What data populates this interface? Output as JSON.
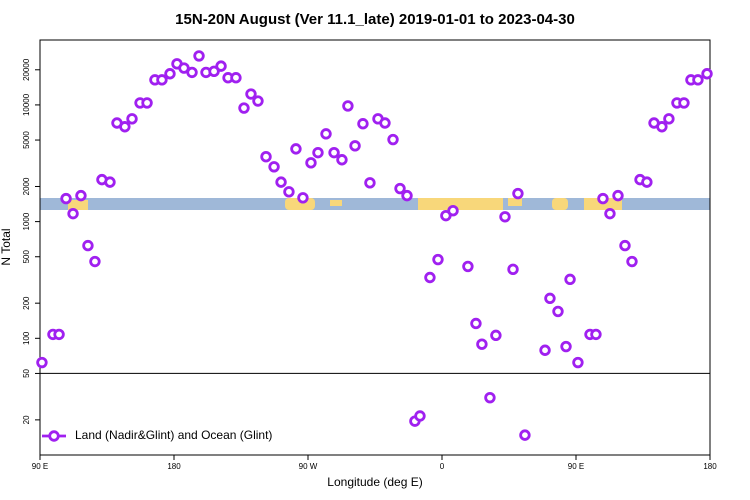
{
  "chart_data": {
    "type": "scatter",
    "title": "15N-20N August (Ver 11.1_late)   2019-01-01 to 2023-04-30",
    "xlabel": "Longitude (deg E)",
    "ylabel": "N Total",
    "xlim": [
      90,
      540
    ],
    "xticks": [
      {
        "value": 90,
        "label": "90 E"
      },
      180,
      {
        "value": 270,
        "label": "90 W"
      },
      {
        "value": 360,
        "label": "0"
      },
      {
        "value": 450,
        "label": "90 E"
      },
      {
        "value": 540,
        "label": "180"
      }
    ],
    "ylim": [
      10,
      36000
    ],
    "yscale": "log",
    "yticks": [
      20,
      50,
      100,
      200,
      500,
      1000,
      2000,
      5000,
      10000,
      20000
    ],
    "reference_line": 50,
    "legend": "bottom-left",
    "series": [
      {
        "name": "Land (Nadir&Glint) and Ocean (Glint)",
        "color": "#a020f0",
        "x": [
          91.3,
          98.7,
          102.8,
          107.5,
          112.2,
          117.5,
          122.2,
          126.9,
          131.6,
          137,
          141.7,
          147,
          151.8,
          157.2,
          161.9,
          167.2,
          171.9,
          177.3,
          182,
          186.7,
          192.1,
          196.8,
          201.5,
          206.9,
          211.6,
          216.3,
          221.6,
          227,
          231.7,
          236.4,
          241.8,
          247.2,
          251.9,
          257.2,
          261.9,
          266.6,
          272,
          276.7,
          282.1,
          287.5,
          292.8,
          296.8,
          301.6,
          306.9,
          311.6,
          317,
          321.7,
          327.1,
          331.8,
          336.5,
          341.8,
          345.2,
          351.9,
          357.3,
          362.6,
          367.4,
          377.4,
          382.8,
          386.8,
          392.2,
          396.2,
          402.3,
          407.7,
          411,
          415.7,
          429.2,
          432.5,
          437.9,
          443.3,
          446,
          451.3,
          459.4,
          463.4,
          468.1,
          472.8,
          478.2,
          482.9,
          487.6,
          493,
          497.6,
          502.4,
          507.7,
          512.4,
          517.8,
          522.5,
          527.2,
          531.9,
          538
        ],
        "values": [
          62,
          108,
          108,
          1575,
          1170,
          1670,
          623,
          455,
          2290,
          2180,
          7000,
          6500,
          7600,
          10400,
          10400,
          16400,
          16400,
          18500,
          22500,
          20700,
          19000,
          26300,
          19000,
          19400,
          21500,
          17100,
          17100,
          9400,
          12400,
          10800,
          3600,
          2950,
          2180,
          1800,
          4200,
          1600,
          3190,
          3900,
          5650,
          3900,
          3390,
          9800,
          4460,
          6900,
          2150,
          7600,
          7000,
          5050,
          1920,
          1670,
          19.5,
          21.6,
          332,
          473,
          1125,
          1240,
          413,
          134,
          89,
          31,
          106,
          1100,
          390,
          1740,
          14.8,
          79,
          220,
          170,
          85,
          320,
          62,
          108,
          108,
          1575,
          1170,
          1670,
          623,
          455,
          2290,
          2180,
          7000,
          6500,
          7600,
          10400,
          10400,
          16400,
          16400,
          18500
        ]
      }
    ]
  }
}
